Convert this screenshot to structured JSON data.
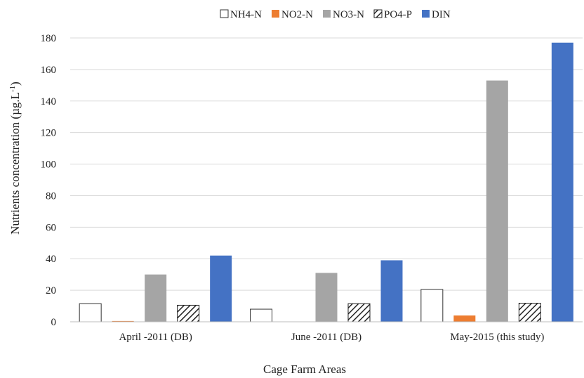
{
  "chart_data": {
    "type": "bar",
    "title": "",
    "xlabel": "Cage Farm Areas",
    "ylabel": "Nutrients concentration (µg.L",
    "ylabel_sup": "-1",
    "ylabel_close": ")",
    "categories": [
      "April -2011 (DB)",
      "June -2011 (DB)",
      "May-2015 (this study)"
    ],
    "ylim": [
      0,
      180
    ],
    "yticks": [
      0,
      20,
      40,
      60,
      80,
      100,
      120,
      140,
      160,
      180
    ],
    "grid": true,
    "legend_position": "top",
    "series": [
      {
        "name": "NH4-N",
        "values": [
          11.5,
          8,
          20.5
        ],
        "style": "outline",
        "color": "#ffffff",
        "stroke": "#333333"
      },
      {
        "name": "NO2-N",
        "values": [
          0.5,
          0,
          4
        ],
        "style": "solid",
        "color": "#ed7d31",
        "stroke": "none"
      },
      {
        "name": "NO3-N",
        "values": [
          30,
          31,
          153
        ],
        "style": "solid",
        "color": "#a5a5a5",
        "stroke": "none"
      },
      {
        "name": "PO4-P",
        "values": [
          10.5,
          11.5,
          11.8
        ],
        "style": "hatch",
        "color": "#ffffff",
        "stroke": "#222222"
      },
      {
        "name": "DIN",
        "values": [
          42,
          39,
          177
        ],
        "style": "solid",
        "color": "#4472c4",
        "stroke": "none"
      }
    ]
  }
}
